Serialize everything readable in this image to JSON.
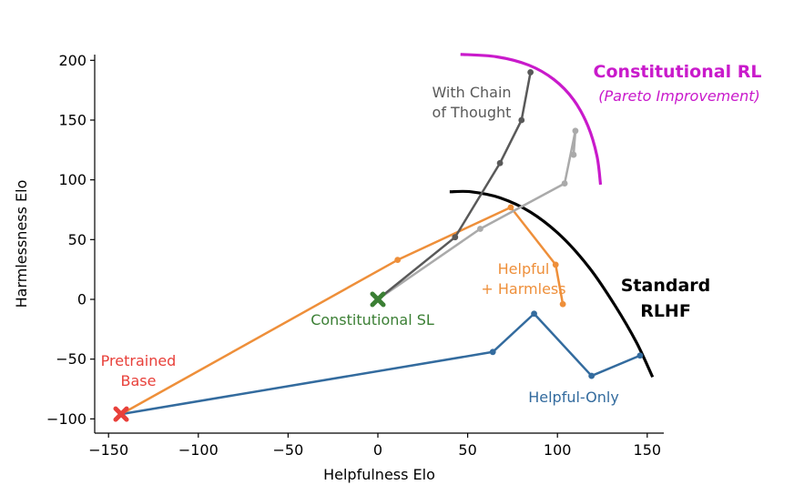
{
  "chart_data": {
    "type": "line",
    "title": "",
    "xlabel": "Helpfulness Elo",
    "ylabel": "Harmlessness Elo",
    "xlim": [
      -155,
      160
    ],
    "ylim": [
      -110,
      205
    ],
    "xticks": [
      -150,
      -100,
      -50,
      0,
      50,
      100,
      150
    ],
    "yticks": [
      -100,
      -50,
      0,
      50,
      100,
      150,
      200
    ],
    "xtick_labels": [
      "−150",
      "−100",
      "−50",
      "0",
      "50",
      "100",
      "150"
    ],
    "ytick_labels": [
      "−100",
      "−50",
      "0",
      "50",
      "100",
      "150",
      "200"
    ],
    "grid": false,
    "series": [
      {
        "name": "Helpful-Only",
        "color": "#336b9e",
        "x": [
          -143,
          64,
          87,
          119,
          146
        ],
        "y": [
          -96,
          -44,
          -12,
          -64,
          -47
        ]
      },
      {
        "name": "Helpful + Harmless",
        "color": "#ee8f3a",
        "x": [
          -143,
          11,
          74,
          99,
          103
        ],
        "y": [
          -96,
          33,
          77,
          29,
          -4
        ]
      },
      {
        "name": "Constitutional RL",
        "color": "#aaaaaa",
        "x": [
          0,
          57,
          104,
          110,
          109
        ],
        "y": [
          0,
          59,
          97,
          141,
          121
        ]
      },
      {
        "name": "With Chain of Thought",
        "color": "#595959",
        "x": [
          0,
          43,
          68,
          80,
          85
        ],
        "y": [
          0,
          52,
          114,
          150,
          190
        ]
      }
    ],
    "markers": [
      {
        "name": "Pretrained Base",
        "x": -143,
        "y": -96,
        "color": "#e8403a",
        "shape": "x"
      },
      {
        "name": "Constitutional SL",
        "x": 0,
        "y": 0,
        "color": "#3b7f34",
        "shape": "x"
      }
    ],
    "frontiers": [
      {
        "name": "Standard RLHF",
        "color": "#000000",
        "x": [
          40,
          52,
          68,
          85,
          102,
          118,
          132,
          144,
          153
        ],
        "y": [
          90,
          90,
          85,
          73,
          53,
          26,
          -5,
          -36,
          -65
        ]
      },
      {
        "name": "Constitutional RL (Pareto Improvement)",
        "color": "#c91acb",
        "x": [
          46,
          66,
          84,
          98,
          109,
          117,
          122,
          124
        ],
        "y": [
          205,
          203,
          196,
          184,
          167,
          145,
          120,
          96
        ]
      }
    ],
    "annotations": [
      {
        "key": "with_cot",
        "lines": [
          "With Chain",
          "of Thought"
        ],
        "color": "#595959"
      },
      {
        "key": "const_rl",
        "lines": [
          "Constitutional RL"
        ],
        "color": "#c91acb",
        "bold": true
      },
      {
        "key": "pareto",
        "lines": [
          "(Pareto Improvement)"
        ],
        "color": "#c91acb",
        "italic": true
      },
      {
        "key": "helpful_harmless",
        "lines": [
          "Helpful",
          "+ Harmless"
        ],
        "color": "#ee8f3a"
      },
      {
        "key": "standard_rlhf",
        "lines": [
          "Standard",
          "RLHF"
        ],
        "color": "#000000",
        "bold": true
      },
      {
        "key": "constitutional_sl",
        "lines": [
          "Constitutional SL"
        ],
        "color": "#3b7f34"
      },
      {
        "key": "pretrained_base",
        "lines": [
          "Pretrained",
          "Base"
        ],
        "color": "#e8403a"
      },
      {
        "key": "helpful_only",
        "lines": [
          "Helpful-Only"
        ],
        "color": "#336b9e"
      }
    ]
  }
}
